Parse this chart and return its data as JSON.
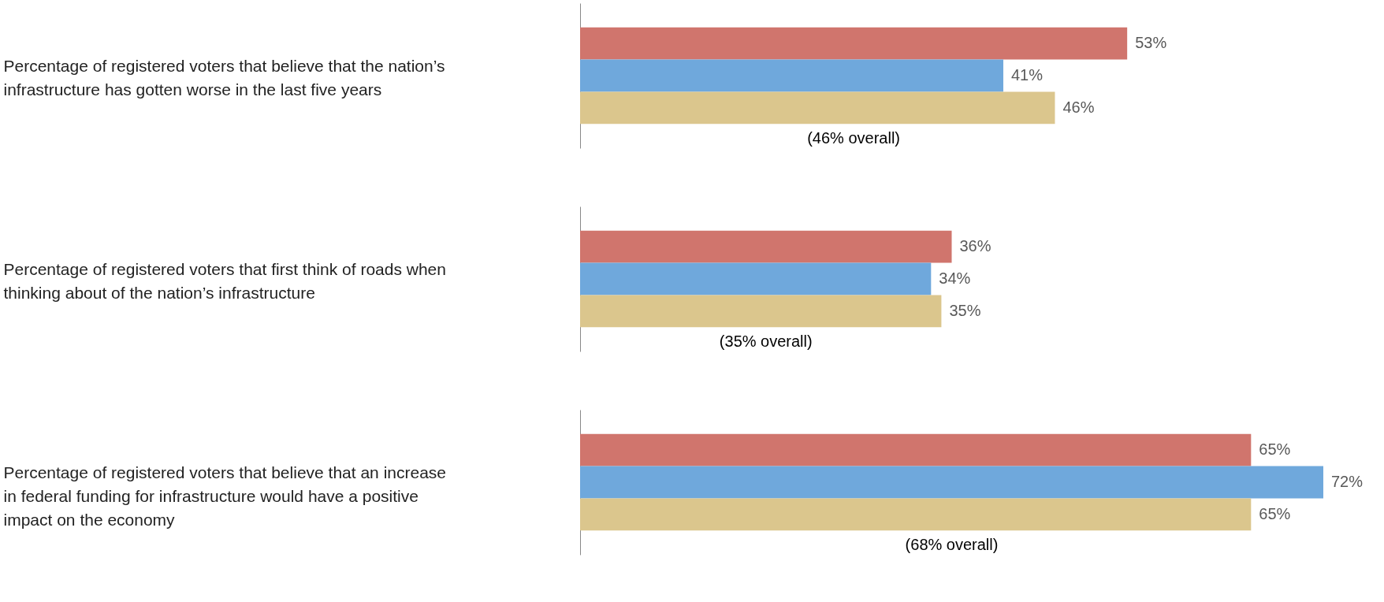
{
  "chart_data": [
    {
      "type": "bar",
      "orientation": "horizontal",
      "ylabel": "Percentage of registered voters that believe that the nation’s infrastructure has gotten worse in the last five years",
      "categories": [
        null,
        null,
        null
      ],
      "values": [
        53,
        41,
        46
      ],
      "colors": [
        "#d0756d",
        "#6fa8dc",
        "#dbc68d"
      ],
      "value_labels": [
        "53%",
        "41%",
        "46%"
      ],
      "annotations": [
        "(46% overall)"
      ]
    },
    {
      "type": "bar",
      "orientation": "horizontal",
      "ylabel": "Percentage of registered voters that first think of roads when thinking about of the nation’s infrastructure",
      "categories": [
        null,
        null,
        null
      ],
      "values": [
        36,
        34,
        35
      ],
      "colors": [
        "#d0756d",
        "#6fa8dc",
        "#dbc68d"
      ],
      "value_labels": [
        "36%",
        "34%",
        "35%"
      ],
      "annotations": [
        "(35% overall)"
      ]
    },
    {
      "type": "bar",
      "orientation": "horizontal",
      "ylabel": "Percentage of registered voters that believe that an increase in federal funding for infrastructure would have a positive impact on the economy",
      "categories": [
        null,
        null,
        null
      ],
      "values": [
        65,
        72,
        65
      ],
      "colors": [
        "#d0756d",
        "#6fa8dc",
        "#dbc68d"
      ],
      "value_labels": [
        "65%",
        "72%",
        "65%"
      ],
      "annotations": [
        "(68% overall)"
      ]
    }
  ]
}
